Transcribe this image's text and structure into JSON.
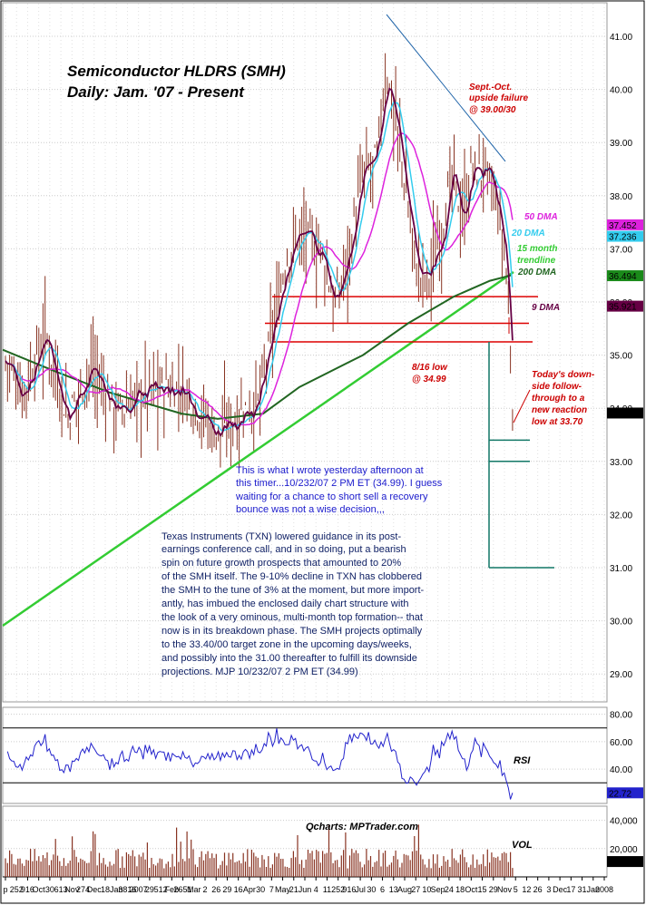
{
  "chart_data": {
    "type": "line",
    "title": "Semiconductor HLDRS (SMH)",
    "subtitle": "Daily: Jam. '07 - Present",
    "ylim": [
      28.5,
      41.5
    ],
    "y_ticks": [
      "41.00",
      "40.00",
      "39.00",
      "38.00",
      "37.00",
      "36.00",
      "35.00",
      "34.00",
      "33.00",
      "32.00",
      "31.00",
      "30.00",
      "29.00"
    ],
    "x_ticks": [
      "p",
      "252",
      "916",
      "Oct",
      "30",
      "613",
      "Nov",
      "274",
      "Dec",
      "18",
      "Jan",
      "3816",
      "2007",
      "29",
      "512",
      "Feb",
      "2651",
      "Mar",
      "2",
      "26",
      "29",
      "16",
      "Apr",
      "30",
      "7",
      "May",
      "21",
      "Jun",
      "4",
      "11",
      "252",
      "916",
      "Jul",
      "30",
      "6",
      "13",
      "Aug",
      "27",
      "10",
      "Sep",
      "24",
      "18",
      "Oct",
      "15",
      "29",
      "Nov",
      "5",
      "12",
      "26",
      "3",
      "Dec",
      "17",
      "31",
      "Jan",
      "2008"
    ],
    "price_labels": {
      "ma50": "37.452",
      "ma20": "37.236",
      "ma200": "36.494",
      "ma9": "35.921",
      "last": "33.910"
    },
    "series": [
      {
        "name": "50 DMA",
        "color": "#dd22dd"
      },
      {
        "name": "20 DMA",
        "color": "#33ccee"
      },
      {
        "name": "200 DMA",
        "color": "#226622"
      },
      {
        "name": "9 DMA",
        "color": "#660044"
      }
    ],
    "levels": [
      36.1,
      35.6,
      35.25
    ],
    "targets": [
      33.4,
      33.0,
      31.0
    ],
    "annotations": {
      "upside_failure": [
        "Sept.-Oct.",
        "upside failure",
        "@ 39.00/30"
      ],
      "ma50": "50 DMA",
      "ma20": "20 DMA",
      "trendline": [
        "15 month",
        "trendline"
      ],
      "ma200": "200 DMA",
      "ma9": "9 DMA",
      "low816": [
        "8/16 low",
        "@ 34.99"
      ],
      "today": [
        "Today's down-",
        "side follow-",
        "through to a",
        "new reaction",
        "low at 33.70"
      ]
    },
    "rsi": {
      "label": "RSI",
      "ticks": [
        "80.00",
        "60.00",
        "40.00"
      ],
      "ylim": [
        15,
        85
      ],
      "levels": [
        70,
        30
      ],
      "last": "22.72"
    },
    "volume": {
      "label": "VOL",
      "ticks": [
        "40,000",
        "20,000"
      ],
      "ylim": [
        0,
        50000
      ],
      "last": "10,846"
    },
    "credit": "Qcharts: MPTrader.com"
  },
  "commentary": {
    "blue": [
      "This is what I wrote yesterday afternoon at",
      "this timer...10/232/07  2 PM ET  (34.99). I guess",
      "waiting for a chance to short sell a recovery",
      "bounce was not a wise decision,,,"
    ],
    "navy": [
      "Texas Instruments (TXN) lowered guidance in its post-",
      "earnings conference call, and in so doing, put a bearish",
      "spin on future growth prospects that amounted to 20%",
      "of the SMH itself. The 9-10% decline in TXN has clobbered",
      "the SMH to the tune of 3% at the moment, but more import-",
      "antly, has imbued the enclosed daily chart structure with",
      "the look of a very ominous, multi-month top formation-- that",
      "now is in its breakdown phase. The SMH projects optimally",
      "to the 33.40/00 target zone in the upcoming days/weeks,",
      "and possibly into the 31.00 thereafter to fulfill its downside",
      "projections.  MJP  10/232/07  2 PM ET  (34.99)"
    ]
  },
  "colors": {
    "price_bar": "#883322",
    "ma50": "#dd22dd",
    "ma20": "#33ccee",
    "ma200": "#226622",
    "ma9": "#660044",
    "trendline": "#33cc33",
    "level": "#dd0000",
    "target": "#117766",
    "note_red": "#cc0000",
    "note_blue": "#1a1acc",
    "note_navy": "#112266",
    "rsi": "#2222cc"
  }
}
